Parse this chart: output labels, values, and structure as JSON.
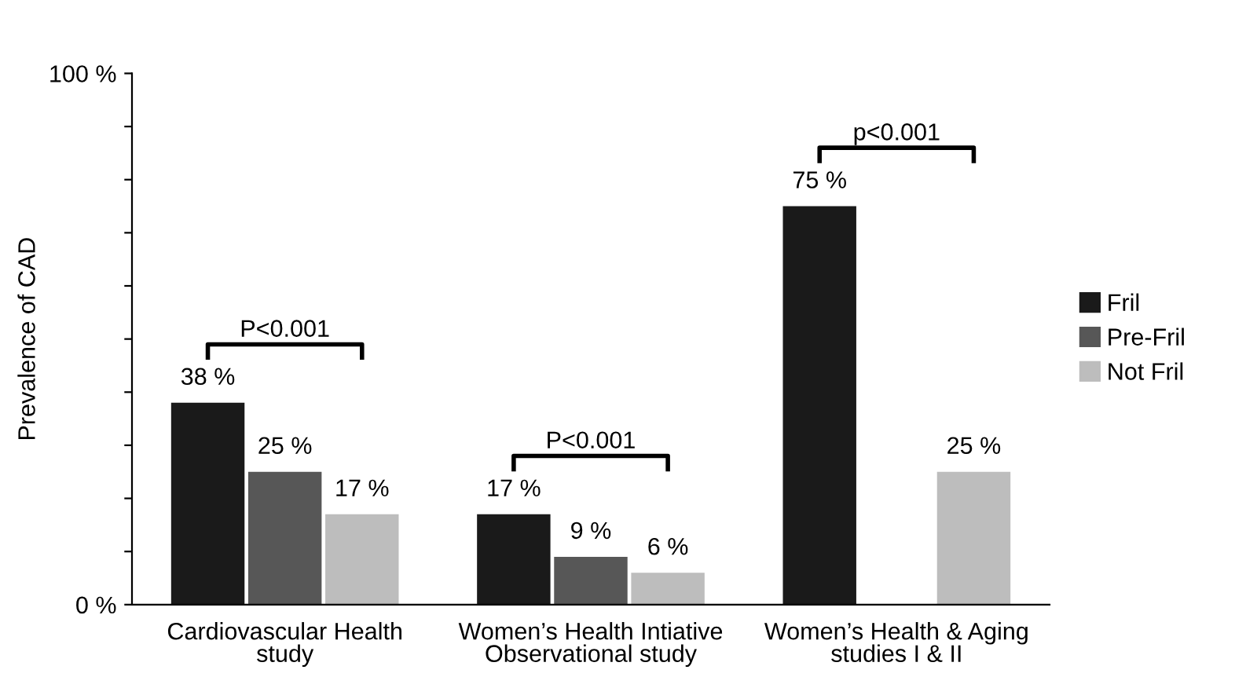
{
  "chart_data": {
    "type": "bar",
    "ylabel": "Prevalence of CAD",
    "categories": [
      "Cardiovascular Health study",
      "Women’s Health Intiative Observational study",
      "Women’s Health & Aging studies I & II"
    ],
    "series": [
      {
        "name": "Fril",
        "color": "#1a1a1a",
        "values": [
          38,
          17,
          75
        ],
        "value_labels": [
          "38 %",
          "17 %",
          "75 %"
        ]
      },
      {
        "name": "Pre-Fril",
        "color": "#575757",
        "values": [
          25,
          9,
          null
        ],
        "value_labels": [
          "25 %",
          "9 %",
          null
        ]
      },
      {
        "name": "Not Fril",
        "color": "#bdbdbd",
        "values": [
          17,
          6,
          25
        ],
        "value_labels": [
          "17 %",
          "6 %",
          "25 %"
        ]
      }
    ],
    "ylim": [
      0,
      100
    ],
    "yticks": [
      {
        "value": 0,
        "label": "0 %"
      },
      {
        "value": 10,
        "label": null
      },
      {
        "value": 20,
        "label": null
      },
      {
        "value": 30,
        "label": null
      },
      {
        "value": 40,
        "label": null
      },
      {
        "value": 50,
        "label": null
      },
      {
        "value": 60,
        "label": null
      },
      {
        "value": 70,
        "label": null
      },
      {
        "value": 80,
        "label": null
      },
      {
        "value": 90,
        "label": null
      },
      {
        "value": 100,
        "label": "100 %"
      }
    ],
    "annotations": [
      "P<0.001",
      "P<0.001",
      "p<0.001"
    ],
    "legend": "right",
    "grid": false
  }
}
